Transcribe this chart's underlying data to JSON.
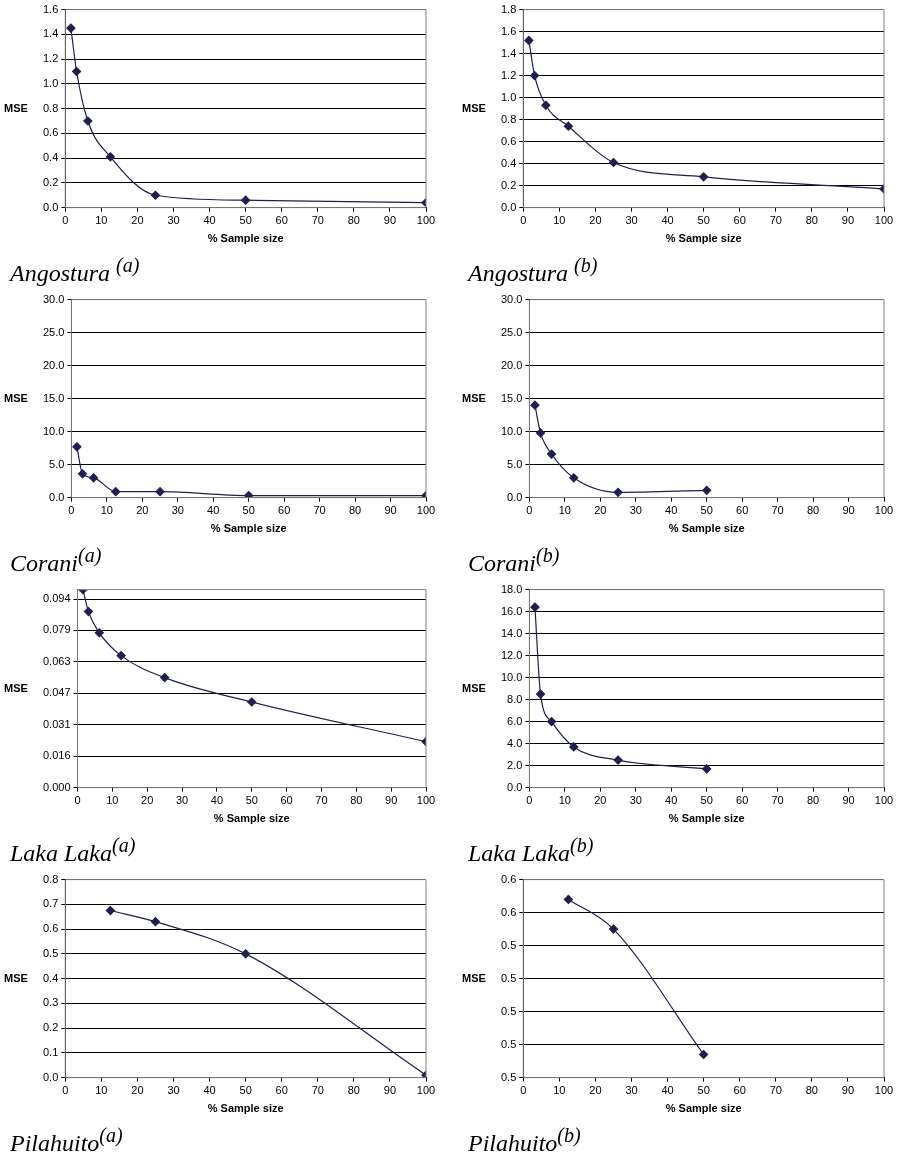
{
  "chart_data": [
    {
      "type": "line",
      "title": "Angostura $^{(a)}$",
      "xlabel": "% Sample size",
      "ylabel": "MSE",
      "x": [
        1.56,
        3.13,
        6.25,
        12.5,
        25,
        50,
        100
      ],
      "values": [
        1.45,
        1.1,
        0.7,
        0.41,
        0.1,
        0.06,
        0.04
      ],
      "color": "#1f1f4f",
      "xlim": [
        0,
        100
      ],
      "ylim": [
        0,
        1.6
      ],
      "xticks": [
        0,
        10,
        20,
        30,
        40,
        50,
        60,
        70,
        80,
        90,
        100
      ],
      "yticks": [
        {
          "value": 0,
          "label": "0.0"
        },
        {
          "value": 0.2,
          "label": "0.2"
        },
        {
          "value": 0.4,
          "label": "0.4"
        },
        {
          "value": 0.6,
          "label": "0.6"
        },
        {
          "value": 0.8,
          "label": "0.8"
        },
        {
          "value": 1,
          "label": "1.0"
        },
        {
          "value": 1.2,
          "label": "1.2"
        },
        {
          "value": 1.4,
          "label": "1.4"
        },
        {
          "value": 1.6,
          "label": "1.6"
        }
      ],
      "grid": "y",
      "marker": "diamond"
    },
    {
      "type": "line",
      "title": "Angostura $^{(b)}$",
      "xlabel": "% Sample size",
      "ylabel": "MSE",
      "x": [
        1.56,
        3.13,
        6.25,
        12.5,
        25,
        50,
        100
      ],
      "values": [
        1.52,
        1.2,
        0.93,
        0.74,
        0.41,
        0.28,
        0.17
      ],
      "color": "#1f1f4f",
      "xlim": [
        0,
        100
      ],
      "ylim": [
        0,
        1.8
      ],
      "xticks": [
        0,
        10,
        20,
        30,
        40,
        50,
        60,
        70,
        80,
        90,
        100
      ],
      "yticks": [
        {
          "value": 0,
          "label": "0.0"
        },
        {
          "value": 0.2,
          "label": "0.2"
        },
        {
          "value": 0.4,
          "label": "0.4"
        },
        {
          "value": 0.6,
          "label": "0.6"
        },
        {
          "value": 0.8,
          "label": "0.8"
        },
        {
          "value": 1,
          "label": "1.0"
        },
        {
          "value": 1.2,
          "label": "1.2"
        },
        {
          "value": 1.4,
          "label": "1.4"
        },
        {
          "value": 1.6,
          "label": "1.6"
        },
        {
          "value": 1.8,
          "label": "1.8"
        }
      ],
      "grid": "y",
      "marker": "diamond"
    },
    {
      "type": "line",
      "title": "Corani$^{(a)}$",
      "xlabel": "% Sample size",
      "ylabel": "MSE",
      "x": [
        1.56,
        3.13,
        6.25,
        12.5,
        25,
        50,
        100
      ],
      "values": [
        7.7,
        3.6,
        3.0,
        0.9,
        0.9,
        0.3,
        0.3
      ],
      "color": "#1f1f4f",
      "xlim": [
        0,
        100
      ],
      "ylim": [
        0,
        30
      ],
      "xticks": [
        0,
        10,
        20,
        30,
        40,
        50,
        60,
        70,
        80,
        90,
        100
      ],
      "yticks": [
        {
          "value": 0,
          "label": "0.0"
        },
        {
          "value": 5,
          "label": "5.0"
        },
        {
          "value": 10,
          "label": "10.0"
        },
        {
          "value": 15,
          "label": "15.0"
        },
        {
          "value": 20,
          "label": "20.0"
        },
        {
          "value": 25,
          "label": "25.0"
        },
        {
          "value": 30,
          "label": "30.0"
        }
      ],
      "grid": "y",
      "marker": "diamond"
    },
    {
      "type": "line",
      "title": "Corani$^{(b)}$",
      "xlabel": "% Sample size",
      "ylabel": "MSE",
      "x": [
        1.56,
        3.13,
        6.25,
        12.5,
        25,
        50
      ],
      "values": [
        14.0,
        9.8,
        6.6,
        3.0,
        0.8,
        1.1
      ],
      "color": "#1f1f4f",
      "xlim": [
        0,
        100
      ],
      "ylim": [
        0,
        30
      ],
      "xticks": [
        0,
        10,
        20,
        30,
        40,
        50,
        60,
        70,
        80,
        90,
        100
      ],
      "yticks": [
        {
          "value": 0,
          "label": "0.0"
        },
        {
          "value": 5,
          "label": "5.0"
        },
        {
          "value": 10,
          "label": "10.0"
        },
        {
          "value": 15,
          "label": "15.0"
        },
        {
          "value": 20,
          "label": "20.0"
        },
        {
          "value": 25,
          "label": "25.0"
        },
        {
          "value": 30,
          "label": "30.0"
        }
      ],
      "grid": "y",
      "marker": "diamond"
    },
    {
      "type": "line",
      "title": "Laka Laka$^{(a)}$",
      "xlabel": "% Sample size",
      "ylabel": "MSE",
      "x": [
        1.56,
        3.13,
        6.25,
        12.5,
        25,
        50,
        100
      ],
      "values": [
        0.099,
        0.088,
        0.0774,
        0.066,
        0.055,
        0.0428,
        0.023
      ],
      "color": "#1f1f4f",
      "xlim": [
        0,
        100
      ],
      "ylim": [
        0,
        0.099
      ],
      "xticks": [
        0,
        10,
        20,
        30,
        40,
        50,
        60,
        70,
        80,
        90,
        100
      ],
      "yticks": [
        {
          "value": 0,
          "label": "0.000"
        },
        {
          "value": 0.0157,
          "label": "0.016"
        },
        {
          "value": 0.0314,
          "label": "0.031"
        },
        {
          "value": 0.0471,
          "label": "0.047"
        },
        {
          "value": 0.0629,
          "label": "0.063"
        },
        {
          "value": 0.0786,
          "label": "0.079"
        },
        {
          "value": 0.0943,
          "label": "0.094"
        }
      ],
      "grid": "y",
      "marker": "diamond"
    },
    {
      "type": "line",
      "title": "Laka Laka$^{(b)}$",
      "xlabel": "% Sample size",
      "ylabel": "MSE",
      "x": [
        1.56,
        3.13,
        6.25,
        12.5,
        25,
        50
      ],
      "values": [
        16.4,
        8.5,
        6.0,
        3.7,
        2.5,
        1.7
      ],
      "color": "#1f1f4f",
      "xlim": [
        0,
        100
      ],
      "ylim": [
        0,
        18
      ],
      "xticks": [
        0,
        10,
        20,
        30,
        40,
        50,
        60,
        70,
        80,
        90,
        100
      ],
      "yticks": [
        {
          "value": 0,
          "label": "0.0"
        },
        {
          "value": 2,
          "label": "2.0"
        },
        {
          "value": 4,
          "label": "4.0"
        },
        {
          "value": 6,
          "label": "6.0"
        },
        {
          "value": 8,
          "label": "8.0"
        },
        {
          "value": 10,
          "label": "10.0"
        },
        {
          "value": 12,
          "label": "12.0"
        },
        {
          "value": 14,
          "label": "14.0"
        },
        {
          "value": 16,
          "label": "16.0"
        },
        {
          "value": 18,
          "label": "18.0"
        }
      ],
      "grid": "y",
      "marker": "diamond"
    },
    {
      "type": "line",
      "title": "Pilahuito$^{(a)}$",
      "xlabel": "% Sample size",
      "ylabel": "MSE",
      "x": [
        12.5,
        25,
        50,
        100
      ],
      "values": [
        0.675,
        0.63,
        0.5,
        0.01
      ],
      "color": "#1f1f4f",
      "xlim": [
        0,
        100
      ],
      "ylim": [
        0,
        0.8
      ],
      "xticks": [
        0,
        10,
        20,
        30,
        40,
        50,
        60,
        70,
        80,
        90,
        100
      ],
      "yticks": [
        {
          "value": 0,
          "label": "0.0"
        },
        {
          "value": 0.1,
          "label": "0.1"
        },
        {
          "value": 0.2,
          "label": "0.2"
        },
        {
          "value": 0.3,
          "label": "0.3"
        },
        {
          "value": 0.4,
          "label": "0.4"
        },
        {
          "value": 0.5,
          "label": "0.5"
        },
        {
          "value": 0.6,
          "label": "0.6"
        },
        {
          "value": 0.7,
          "label": "0.7"
        },
        {
          "value": 0.8,
          "label": "0.8"
        }
      ],
      "grid": "y",
      "marker": "diamond"
    },
    {
      "type": "line",
      "title": "Pilahuito$^{(b)}$",
      "xlabel": "% Sample size",
      "ylabel": "MSE",
      "x": [
        12.5,
        25,
        50
      ],
      "values": [
        0.554,
        0.545,
        0.507
      ],
      "color": "#1f1f4f",
      "xlim": [
        0,
        100
      ],
      "ylim": [
        0.5,
        0.56
      ],
      "xticks": [
        0,
        10,
        20,
        30,
        40,
        50,
        60,
        70,
        80,
        90,
        100
      ],
      "yticks": [
        {
          "value": 0.5,
          "label": "0.5"
        },
        {
          "value": 0.51,
          "label": "0.5"
        },
        {
          "value": 0.52,
          "label": "0.5"
        },
        {
          "value": 0.53,
          "label": "0.5"
        },
        {
          "value": 0.54,
          "label": "0.5"
        },
        {
          "value": 0.55,
          "label": "0.6"
        },
        {
          "value": 0.56,
          "label": "0.6"
        }
      ],
      "grid": "y",
      "marker": "diamond"
    }
  ]
}
